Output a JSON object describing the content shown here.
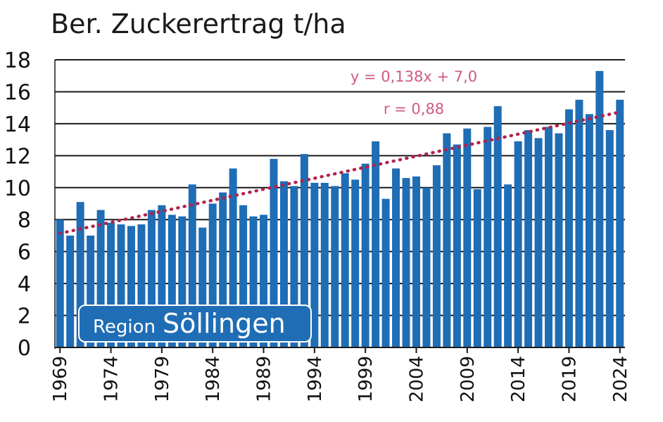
{
  "chart_data": {
    "type": "bar",
    "title": "Ber. Zuckerertrag  t/ha",
    "ylim": [
      0,
      18
    ],
    "yticks": [
      0,
      2,
      4,
      6,
      8,
      10,
      12,
      14,
      16,
      18
    ],
    "grid": true,
    "x": [
      1969,
      1970,
      1971,
      1972,
      1973,
      1974,
      1975,
      1976,
      1977,
      1978,
      1979,
      1980,
      1981,
      1982,
      1983,
      1984,
      1985,
      1986,
      1987,
      1988,
      1989,
      1990,
      1991,
      1992,
      1993,
      1994,
      1995,
      1996,
      1997,
      1998,
      1999,
      2000,
      2001,
      2002,
      2003,
      2004,
      2005,
      2006,
      2007,
      2008,
      2009,
      2010,
      2011,
      2012,
      2013,
      2014,
      2015,
      2016,
      2017,
      2018,
      2019,
      2020,
      2021,
      2022,
      2023,
      2024
    ],
    "xtick_labels": [
      "1969",
      "1974",
      "1979",
      "1984",
      "1989",
      "1994",
      "1999",
      "2004",
      "2009",
      "2014",
      "2019",
      "2024"
    ],
    "values": [
      8.0,
      7.0,
      9.1,
      7.0,
      8.6,
      7.8,
      7.7,
      7.6,
      7.7,
      8.6,
      8.9,
      8.3,
      8.2,
      10.2,
      7.5,
      9.0,
      9.7,
      11.2,
      8.9,
      8.2,
      8.3,
      11.8,
      10.4,
      10.1,
      12.1,
      10.3,
      10.3,
      10.1,
      10.9,
      10.5,
      11.5,
      12.9,
      9.3,
      11.2,
      10.6,
      10.7,
      10.0,
      11.4,
      13.4,
      12.7,
      13.7,
      9.9,
      13.8,
      15.1,
      10.2,
      12.9,
      13.6,
      13.1,
      13.8,
      13.4,
      14.9,
      15.5,
      14.6,
      17.3,
      13.6,
      15.5
    ],
    "trendline": {
      "slope": 0.138,
      "intercept": 7.0,
      "style": "dotted"
    },
    "annotations": [
      "y = 0,138x + 7,0",
      "r = 0,88"
    ],
    "badge": {
      "small": "Region",
      "big": "Söllingen"
    },
    "colors": {
      "bar": "#1f6db5",
      "trend": "#b0234a",
      "annot": "#cf5a86",
      "grid": "#1a1a1a",
      "badge_bg": "#1f6db5",
      "badge_border": "#ffffff"
    }
  }
}
